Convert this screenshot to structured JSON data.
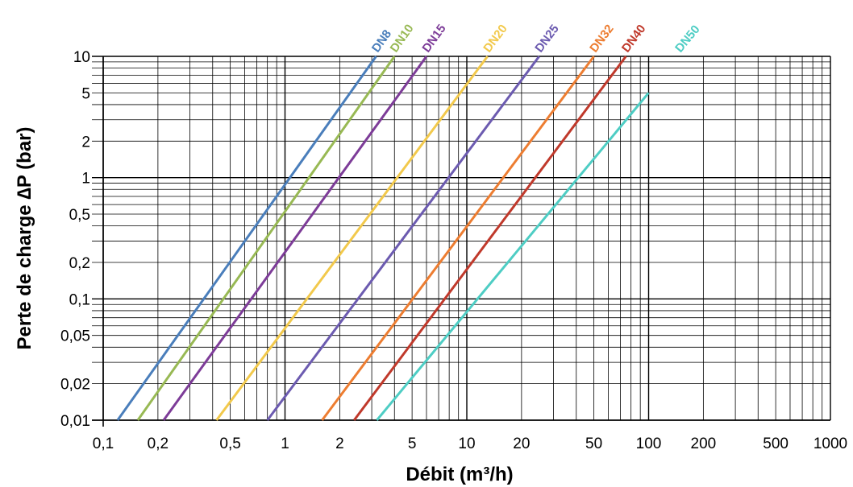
{
  "chart_data": {
    "type": "line",
    "xlabel": "Débit (m³/h)",
    "ylabel": "Perte de charge ∆P (bar)",
    "x_scale": "log",
    "y_scale": "log",
    "xlim": [
      0.1,
      1000
    ],
    "ylim": [
      0.01,
      10
    ],
    "x_ticks": [
      "0,1",
      "0,2",
      "0,5",
      "1",
      "2",
      "5",
      "10",
      "20",
      "50",
      "100",
      "200",
      "500",
      "1000"
    ],
    "y_ticks": [
      "0,01",
      "0,02",
      "0,05",
      "0,1",
      "0,2",
      "0,5",
      "1",
      "2",
      "5",
      "10"
    ],
    "grid": true,
    "legend": "labels at line ends (top)",
    "series": [
      {
        "name": "DN8",
        "color": "#4a7ebb",
        "x": [
          0.12,
          3.17
        ],
        "y": [
          0.01,
          10
        ]
      },
      {
        "name": "DN10",
        "color": "#98b954",
        "x": [
          0.155,
          4.0
        ],
        "y": [
          0.01,
          10
        ]
      },
      {
        "name": "DN15",
        "color": "#7d3c98",
        "x": [
          0.215,
          6.0
        ],
        "y": [
          0.01,
          10
        ]
      },
      {
        "name": "DN20",
        "color": "#f2c94c",
        "x": [
          0.42,
          13.0
        ],
        "y": [
          0.01,
          10
        ]
      },
      {
        "name": "DN25",
        "color": "#6c5bb0",
        "x": [
          0.8,
          25.0
        ],
        "y": [
          0.01,
          10
        ]
      },
      {
        "name": "DN32",
        "color": "#ed7d31",
        "x": [
          1.6,
          50.0
        ],
        "y": [
          0.01,
          10
        ]
      },
      {
        "name": "DN40",
        "color": "#c0392b",
        "x": [
          2.4,
          75.0
        ],
        "y": [
          0.01,
          10
        ]
      },
      {
        "name": "DN50",
        "color": "#4ecdc4",
        "x": [
          3.2,
          100.0
        ],
        "y": [
          0.01,
          5
        ]
      }
    ]
  }
}
